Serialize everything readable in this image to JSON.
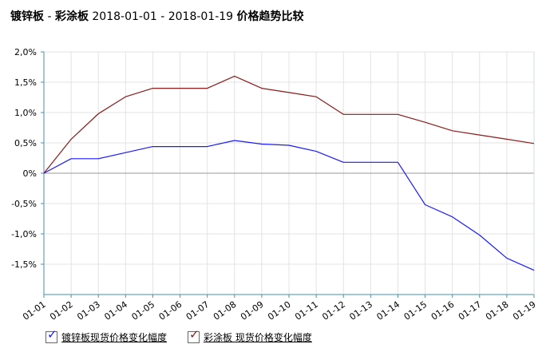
{
  "title": {
    "product_a": "镀锌板",
    "sep": " - ",
    "product_b": "彩涂板",
    "range": " 2018-01-01 - 2018-01-19 ",
    "suffix": "价格趋势比较"
  },
  "legend": [
    {
      "label": "镀锌板现货价格变化幅度",
      "color": "#1a1aff"
    },
    {
      "label": "彩涂板 现货价格变化幅度",
      "color": "#8b1a1a"
    }
  ],
  "chart_data": {
    "type": "line",
    "categories": [
      "01-01",
      "01-02",
      "01-03",
      "01-04",
      "01-05",
      "01-06",
      "01-07",
      "01-08",
      "01-09",
      "01-10",
      "01-11",
      "01-12",
      "01-13",
      "01-14",
      "01-15",
      "01-16",
      "01-17",
      "01-18",
      "01-19"
    ],
    "series": [
      {
        "name": "镀锌板现货价格变化幅度",
        "color": "#1a1aff",
        "values": [
          0,
          0.24,
          0.24,
          0.34,
          0.44,
          0.44,
          0.44,
          0.54,
          0.48,
          0.46,
          0.36,
          0.18,
          0.18,
          0.18,
          -0.52,
          -0.72,
          -1.02,
          -1.4,
          -1.6
        ]
      },
      {
        "name": "彩涂板 现货价格变化幅度",
        "color": "#8b1a1a",
        "values": [
          0,
          0.56,
          0.98,
          1.26,
          1.4,
          1.4,
          1.4,
          1.6,
          1.4,
          1.33,
          1.26,
          0.97,
          0.97,
          0.97,
          0.84,
          0.7,
          0.63,
          0.56,
          0.49
        ]
      }
    ],
    "yticks": [
      "2,0%",
      "1,5%",
      "1,0%",
      "0,5%",
      "0%",
      "-0,5%",
      "-1,0%",
      "-1,5%"
    ],
    "ytick_values": [
      2.0,
      1.5,
      1.0,
      0.5,
      0,
      -0.5,
      -1.0,
      -1.5
    ],
    "ylim": [
      -2.0,
      2.0
    ],
    "grid": true
  }
}
